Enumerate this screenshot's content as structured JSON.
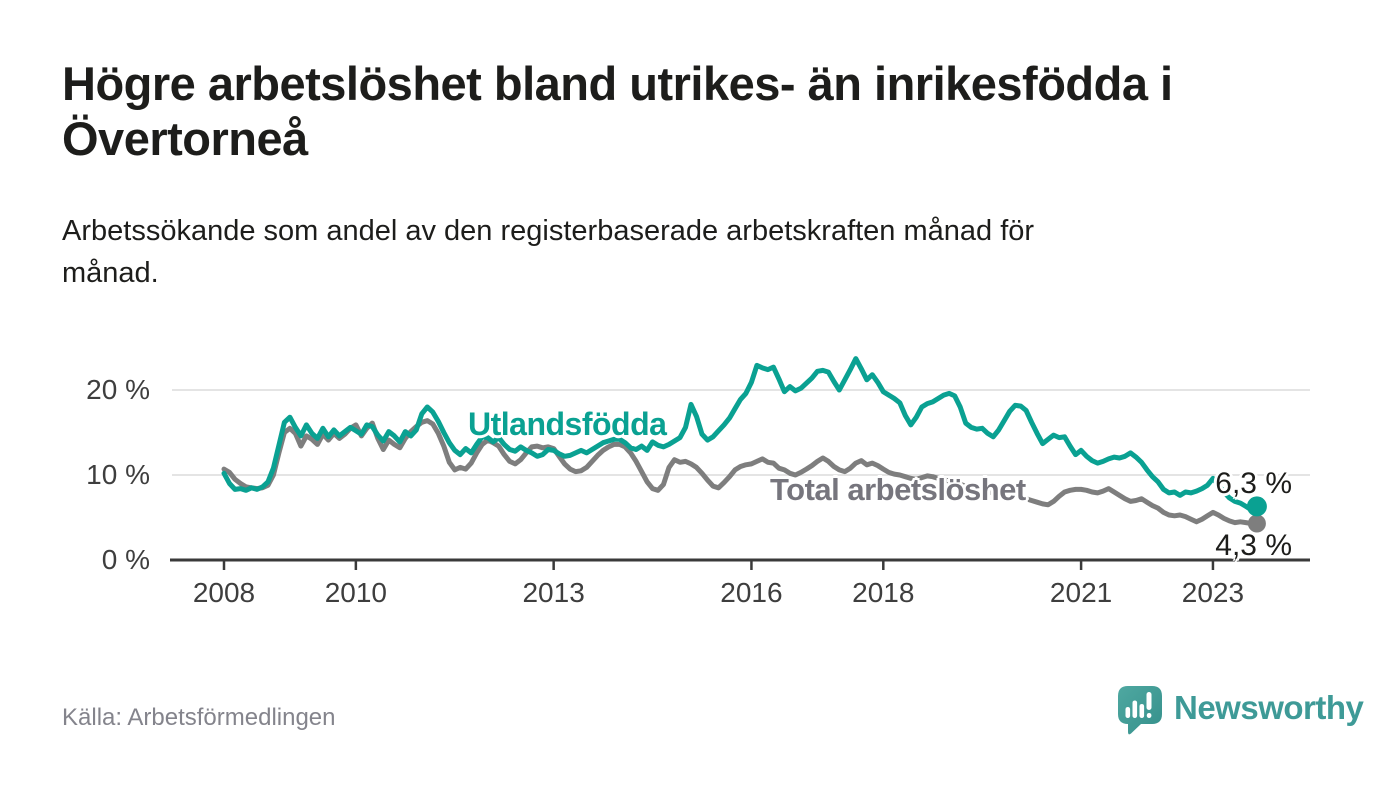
{
  "header": {
    "title": "Högre arbetslöshet bland utrikes- än inrikesfödda i\nÖvertorneå",
    "subtitle": "Arbetssökande som andel av den registerbaserade arbetskraften månad för\nmånad."
  },
  "chart_data": {
    "type": "line",
    "unit": "percent",
    "frequency": "monthly",
    "x_start": "2008-01",
    "x_end": "2023-09",
    "ylim": [
      0,
      24.5
    ],
    "grid": "horizontal",
    "legend": "inline-labels",
    "y_ticks": [
      {
        "value": 0,
        "label": "0 %"
      },
      {
        "value": 10,
        "label": "10 %"
      },
      {
        "value": 20,
        "label": "20 %"
      }
    ],
    "x_tick_years": [
      {
        "year": 2008,
        "label": "2008"
      },
      {
        "year": 2010,
        "label": "2010"
      },
      {
        "year": 2013,
        "label": "2013"
      },
      {
        "year": 2016,
        "label": "2016"
      },
      {
        "year": 2018,
        "label": "2018"
      },
      {
        "year": 2021,
        "label": "2021"
      },
      {
        "year": 2023,
        "label": "2023"
      }
    ],
    "series": [
      {
        "name": "Total arbetslöshet",
        "color": "#7e7e7e",
        "end_label": "4,3 %",
        "end_value": 4.3,
        "values": [
          10.7,
          10.3,
          9.5,
          9.0,
          8.6,
          8.5,
          8.4,
          8.5,
          8.8,
          10.0,
          12.6,
          15.0,
          15.5,
          14.9,
          13.4,
          14.6,
          14.2,
          13.6,
          14.8,
          14.1,
          14.9,
          14.3,
          14.8,
          15.5,
          15.9,
          14.6,
          15.5,
          16.1,
          14.3,
          13.0,
          14.1,
          13.6,
          13.2,
          14.3,
          15.1,
          15.7,
          16.2,
          16.4,
          16.0,
          14.9,
          13.4,
          11.5,
          10.6,
          10.9,
          10.7,
          11.4,
          12.6,
          13.6,
          14.1,
          13.8,
          13.4,
          12.4,
          11.6,
          11.3,
          11.8,
          12.6,
          13.3,
          13.4,
          13.2,
          13.3,
          13.1,
          12.2,
          11.3,
          10.7,
          10.4,
          10.5,
          10.9,
          11.6,
          12.3,
          12.9,
          13.3,
          13.6,
          13.6,
          13.3,
          12.6,
          11.6,
          10.4,
          9.2,
          8.4,
          8.2,
          8.9,
          10.9,
          11.8,
          11.5,
          11.6,
          11.3,
          10.9,
          10.2,
          9.4,
          8.7,
          8.5,
          9.1,
          9.8,
          10.6,
          11.0,
          11.2,
          11.3,
          11.6,
          11.9,
          11.5,
          11.4,
          10.8,
          10.6,
          10.2,
          10.0,
          10.3,
          10.7,
          11.1,
          11.6,
          12.0,
          11.6,
          11.0,
          10.6,
          10.4,
          10.8,
          11.4,
          11.7,
          11.2,
          11.4,
          11.1,
          10.7,
          10.3,
          10.1,
          10.0,
          9.8,
          9.6,
          9.5,
          9.7,
          9.9,
          9.8,
          9.6,
          9.4,
          9.3,
          9.1,
          8.9,
          8.7,
          8.5,
          8.3,
          8.1,
          8.0,
          7.9,
          7.8,
          7.7,
          7.6,
          7.5,
          7.4,
          7.2,
          7.0,
          6.8,
          6.6,
          6.5,
          6.9,
          7.5,
          8.0,
          8.2,
          8.3,
          8.3,
          8.2,
          8.0,
          7.9,
          8.1,
          8.4,
          8.0,
          7.6,
          7.2,
          6.9,
          7.0,
          7.2,
          6.8,
          6.4,
          6.1,
          5.6,
          5.3,
          5.2,
          5.3,
          5.1,
          4.8,
          4.5,
          4.8,
          5.2,
          5.6,
          5.3,
          4.9,
          4.6,
          4.4,
          4.5,
          4.4,
          4.3,
          4.3
        ]
      },
      {
        "name": "Utlandsfödda",
        "color": "#0aa192",
        "end_label": "6,3 %",
        "end_value": 6.3,
        "values": [
          10.2,
          9.0,
          8.3,
          8.4,
          8.2,
          8.5,
          8.3,
          8.6,
          9.2,
          10.8,
          13.5,
          16.2,
          16.8,
          15.6,
          14.6,
          15.9,
          14.9,
          14.3,
          15.5,
          14.5,
          15.3,
          14.6,
          15.1,
          15.6,
          15.2,
          14.8,
          15.9,
          15.7,
          14.7,
          14.0,
          15.1,
          14.6,
          13.9,
          15.1,
          14.6,
          15.3,
          17.2,
          18.0,
          17.4,
          16.3,
          15.0,
          13.8,
          12.9,
          12.4,
          13.1,
          12.6,
          13.6,
          14.5,
          14.4,
          13.9,
          14.4,
          13.6,
          13.0,
          12.8,
          13.3,
          12.9,
          12.6,
          12.2,
          12.4,
          13.0,
          12.9,
          12.5,
          12.2,
          12.3,
          12.6,
          12.9,
          12.6,
          13.0,
          13.4,
          13.8,
          14.0,
          14.2,
          14.2,
          13.8,
          13.2,
          13.0,
          13.4,
          12.9,
          13.9,
          13.5,
          13.3,
          13.6,
          14.0,
          14.4,
          15.6,
          18.3,
          16.9,
          14.8,
          14.1,
          14.5,
          15.2,
          15.9,
          16.7,
          17.8,
          18.9,
          19.6,
          20.9,
          22.9,
          22.6,
          22.4,
          22.7,
          21.3,
          19.8,
          20.4,
          19.9,
          20.2,
          20.8,
          21.4,
          22.2,
          22.3,
          22.1,
          21.0,
          20.0,
          21.2,
          22.4,
          23.7,
          22.5,
          21.2,
          21.8,
          20.9,
          19.8,
          19.4,
          19.0,
          18.5,
          17.0,
          15.9,
          16.8,
          18.0,
          18.4,
          18.6,
          19.0,
          19.4,
          19.6,
          19.3,
          18.0,
          16.1,
          15.6,
          15.4,
          15.5,
          14.9,
          14.5,
          15.3,
          16.4,
          17.5,
          18.2,
          18.1,
          17.6,
          16.2,
          14.9,
          13.7,
          14.2,
          14.7,
          14.4,
          14.5,
          13.4,
          12.4,
          12.9,
          12.2,
          11.7,
          11.4,
          11.6,
          11.9,
          12.1,
          12.0,
          12.2,
          12.6,
          12.1,
          11.5,
          10.6,
          9.8,
          9.2,
          8.3,
          7.9,
          8.0,
          7.6,
          8.0,
          7.9,
          8.1,
          8.4,
          8.8,
          9.6,
          8.8,
          8.0,
          7.3,
          6.9,
          6.7,
          6.3,
          5.9,
          6.3
        ]
      }
    ]
  },
  "footer": {
    "source_label": "Källa: Arbetsförmedlingen",
    "brand_name": "Newsworthy",
    "brand_color": "#3e9a97"
  }
}
